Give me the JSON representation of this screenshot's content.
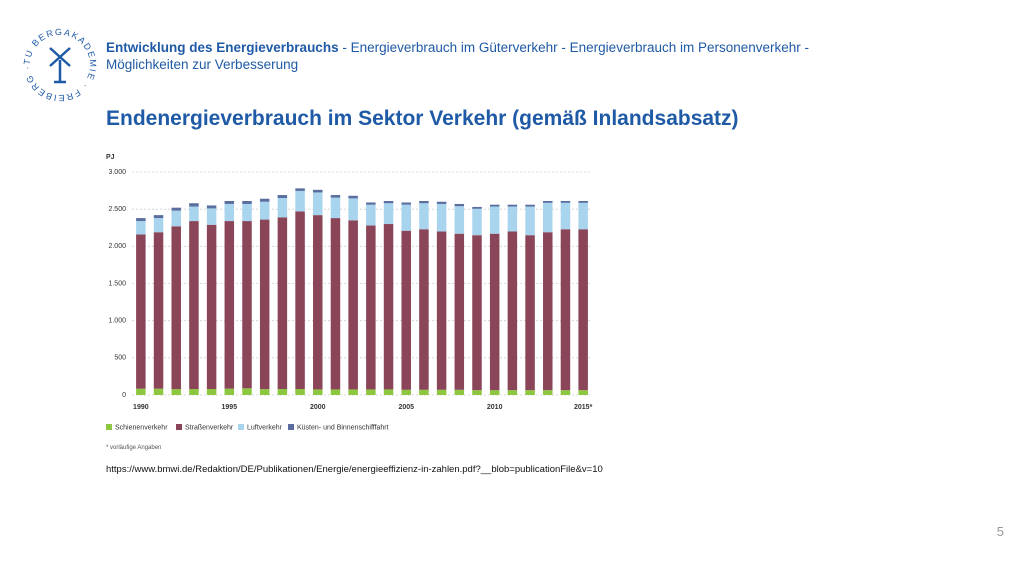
{
  "logo_text": "TU BERGAKADEMIE · FREIBERG ·",
  "header": {
    "bold": "Entwicklung des Energieverbrauchs",
    "line1": " - Energieverbrauch im Güterverkehr - Energieverbrauch im Personenverkehr -",
    "line2": "Möglichkeiten zur Verbesserung"
  },
  "title": "Endenergieverbrauch im Sektor Verkehr (gemäß Inlandsabsatz)",
  "chart_data": {
    "type": "stacked_bar",
    "y_label": "PJ",
    "categories": [
      "1990",
      null,
      null,
      null,
      null,
      "1995",
      null,
      null,
      null,
      null,
      "2000",
      null,
      null,
      null,
      null,
      "2005",
      null,
      null,
      null,
      null,
      "2010",
      null,
      null,
      null,
      null,
      "2015*"
    ],
    "series": [
      {
        "name": "Schienenverkehr",
        "color": "#8dc63f",
        "values": [
          85,
          85,
          80,
          80,
          80,
          85,
          90,
          80,
          80,
          80,
          75,
          75,
          75,
          75,
          75,
          70,
          70,
          70,
          70,
          65,
          65,
          65,
          65,
          65,
          65,
          65
        ]
      },
      {
        "name": "Straßenverkehr",
        "color": "#8b4558",
        "values": [
          2075,
          2105,
          2190,
          2260,
          2210,
          2255,
          2250,
          2280,
          2310,
          2390,
          2345,
          2305,
          2275,
          2205,
          2225,
          2140,
          2160,
          2130,
          2100,
          2085,
          2105,
          2135,
          2085,
          2125,
          2165,
          2165
        ]
      },
      {
        "name": "Luftverkehr",
        "color": "#a9d4ee",
        "values": [
          180,
          190,
          210,
          195,
          220,
          230,
          230,
          240,
          260,
          275,
          305,
          275,
          295,
          280,
          280,
          350,
          350,
          370,
          370,
          355,
          365,
          335,
          385,
          395,
          355,
          355
        ]
      },
      {
        "name": "Küsten- und Binnenschifffahrt",
        "color": "#5a6fa0",
        "values": [
          40,
          40,
          40,
          45,
          40,
          40,
          40,
          40,
          40,
          35,
          35,
          35,
          35,
          30,
          30,
          30,
          30,
          30,
          30,
          25,
          25,
          25,
          25,
          25,
          25,
          25
        ]
      }
    ],
    "ylim": [
      0,
      3000
    ],
    "yticks": [
      0,
      500,
      {
        "value": 1000,
        "label": "1.000"
      },
      {
        "value": 1500,
        "label": "1.500"
      },
      {
        "value": 2000,
        "label": "2.000"
      },
      {
        "value": 2500,
        "label": "2.500"
      },
      {
        "value": 3000,
        "label": "3.000"
      }
    ],
    "grid": true,
    "footnote": "* vorläufige Angaben"
  },
  "source": "https://www.bmwi.de/Redaktion/DE/Publikationen/Energie/energieeffizienz-in-zahlen.pdf?__blob=publicationFile&v=10",
  "page_number": "5"
}
